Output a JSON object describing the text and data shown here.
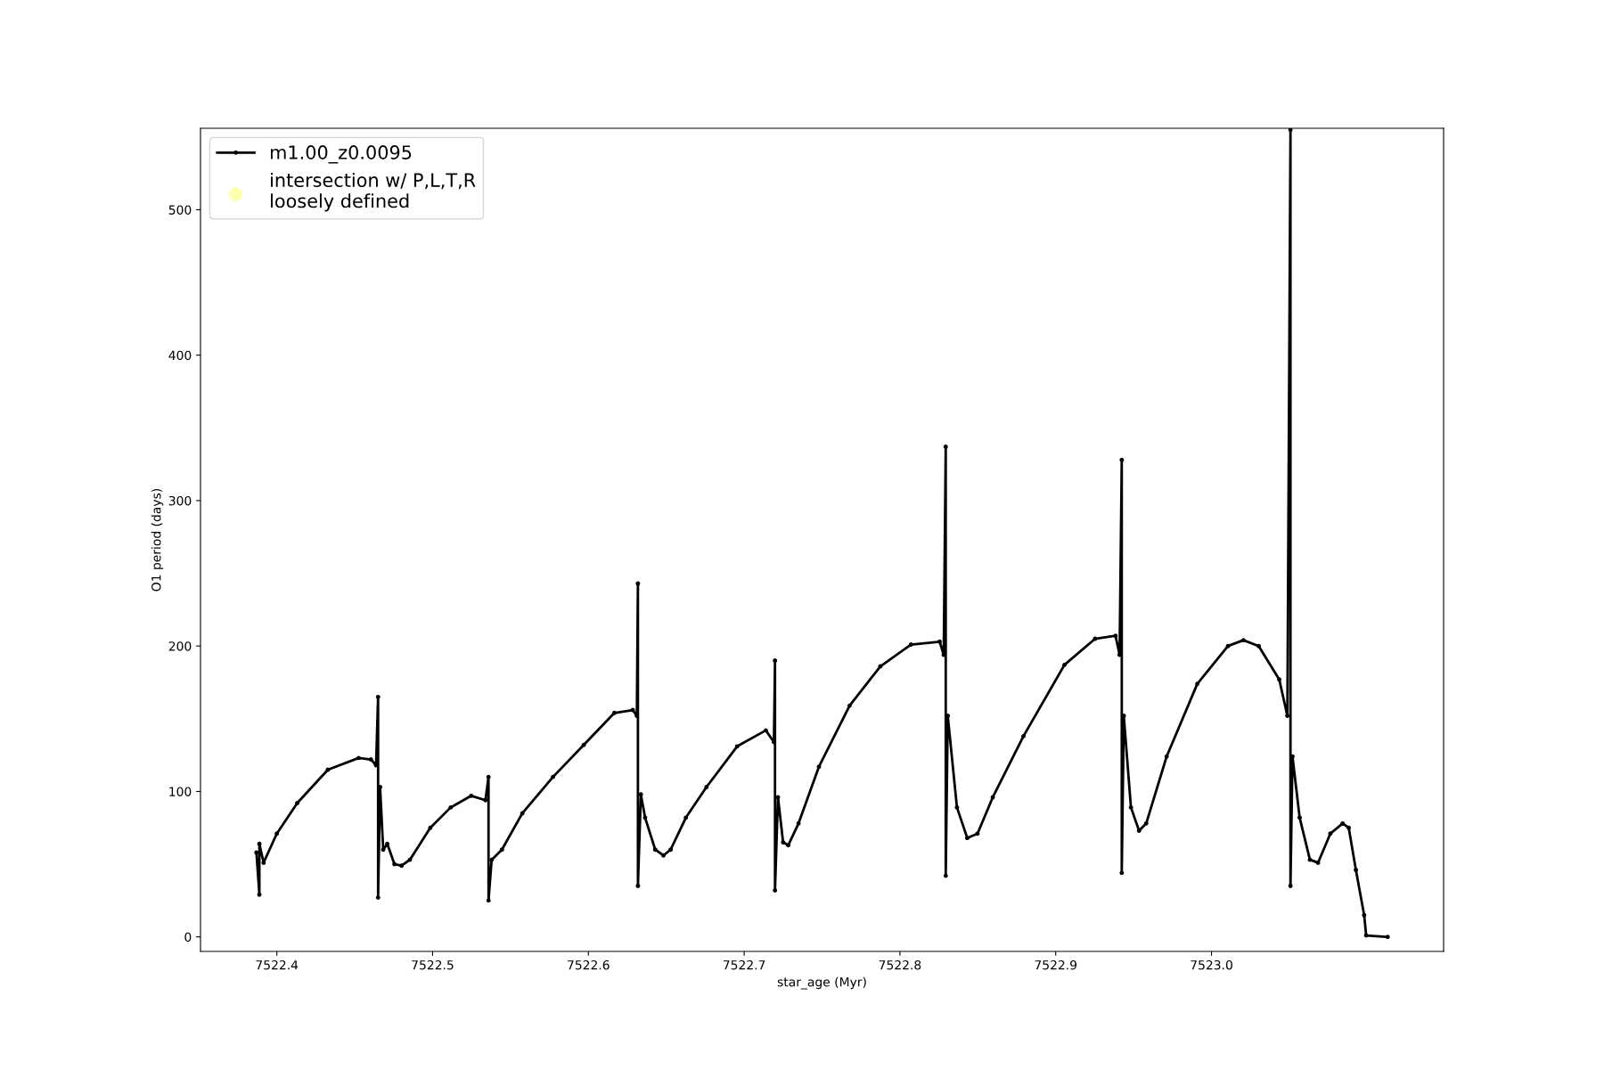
{
  "chart_data": {
    "type": "line",
    "xlabel": "star_age (Myr)",
    "ylabel": "O1 period (days)",
    "xlim": [
      7522.351,
      7523.149
    ],
    "ylim": [
      -10,
      556
    ],
    "xticks": [
      {
        "value": 7522.4,
        "label": "7522.4"
      },
      {
        "value": 7522.5,
        "label": "7522.5"
      },
      {
        "value": 7522.6,
        "label": "7522.6"
      },
      {
        "value": 7522.7,
        "label": "7522.7"
      },
      {
        "value": 7522.8,
        "label": "7522.8"
      },
      {
        "value": 7522.9,
        "label": "7522.9"
      },
      {
        "value": 7523.0,
        "label": "7523.0"
      }
    ],
    "yticks": [
      0,
      100,
      200,
      300,
      400,
      500
    ],
    "grid": false,
    "legend": "top left",
    "marker": "circle",
    "line_style": "solid",
    "series": [
      {
        "name": "m1.00_z0.0095",
        "color": "#000000",
        "x": [
          7522.3869,
          7522.3888,
          7522.3888,
          7522.3915,
          7522.4,
          7522.4131,
          7522.4328,
          7522.4525,
          7522.4604,
          7522.4637,
          7522.465,
          7522.465,
          7522.4663,
          7522.4683,
          7522.4709,
          7522.4755,
          7522.4801,
          7522.4854,
          7522.4985,
          7522.5116,
          7522.5248,
          7522.5339,
          7522.5359,
          7522.5359,
          7522.5379,
          7522.5445,
          7522.5576,
          7522.5773,
          7522.597,
          7522.6167,
          7522.6285,
          7522.6311,
          7522.6318,
          7522.6318,
          7522.6337,
          7522.6364,
          7522.6429,
          7522.6482,
          7522.6528,
          7522.6626,
          7522.6758,
          7522.6955,
          7522.7139,
          7522.7191,
          7522.7198,
          7522.7198,
          7522.7217,
          7522.725,
          7522.7283,
          7522.7349,
          7522.748,
          7522.7677,
          7522.7874,
          7522.8071,
          7522.8255,
          7522.8281,
          7522.8294,
          7522.8294,
          7522.8307,
          7522.8366,
          7522.8432,
          7522.8498,
          7522.8596,
          7522.8793,
          7522.9056,
          7522.9253,
          7522.9384,
          7522.941,
          7522.9424,
          7522.9424,
          7522.9437,
          7522.9483,
          7522.9535,
          7522.9581,
          7522.9712,
          7522.9909,
          7523.0106,
          7523.0205,
          7523.0303,
          7523.0435,
          7523.0487,
          7523.0507,
          7523.0507,
          7523.052,
          7523.0566,
          7523.0632,
          7523.0684,
          7523.0763,
          7523.0842,
          7523.0881,
          7523.0927,
          7523.098,
          7523.0993,
          7523.1131
        ],
        "values": [
          58,
          29,
          64,
          51,
          71,
          92,
          115,
          123,
          122,
          118,
          165,
          27,
          103,
          60,
          64,
          50,
          49,
          53,
          75,
          89,
          97,
          94,
          110,
          25,
          53,
          60,
          85,
          110,
          132,
          154,
          156,
          152,
          243,
          35,
          98,
          82,
          60,
          56,
          60,
          82,
          103,
          131,
          142,
          134,
          190,
          32,
          96,
          65,
          63,
          78,
          117,
          159,
          186,
          201,
          203,
          194,
          337,
          42,
          152,
          89,
          68,
          71,
          96,
          138,
          187,
          205,
          207,
          194,
          328,
          44,
          152,
          89,
          73,
          78,
          124,
          174,
          200,
          204,
          200,
          177,
          152,
          555,
          35,
          124,
          82,
          53,
          51,
          71,
          78,
          75,
          46,
          15,
          1,
          0
        ]
      },
      {
        "name": "intersection w/ P,L,T,R\nloosely defined",
        "color": "#ffffb0",
        "type": "scatter"
      }
    ]
  }
}
